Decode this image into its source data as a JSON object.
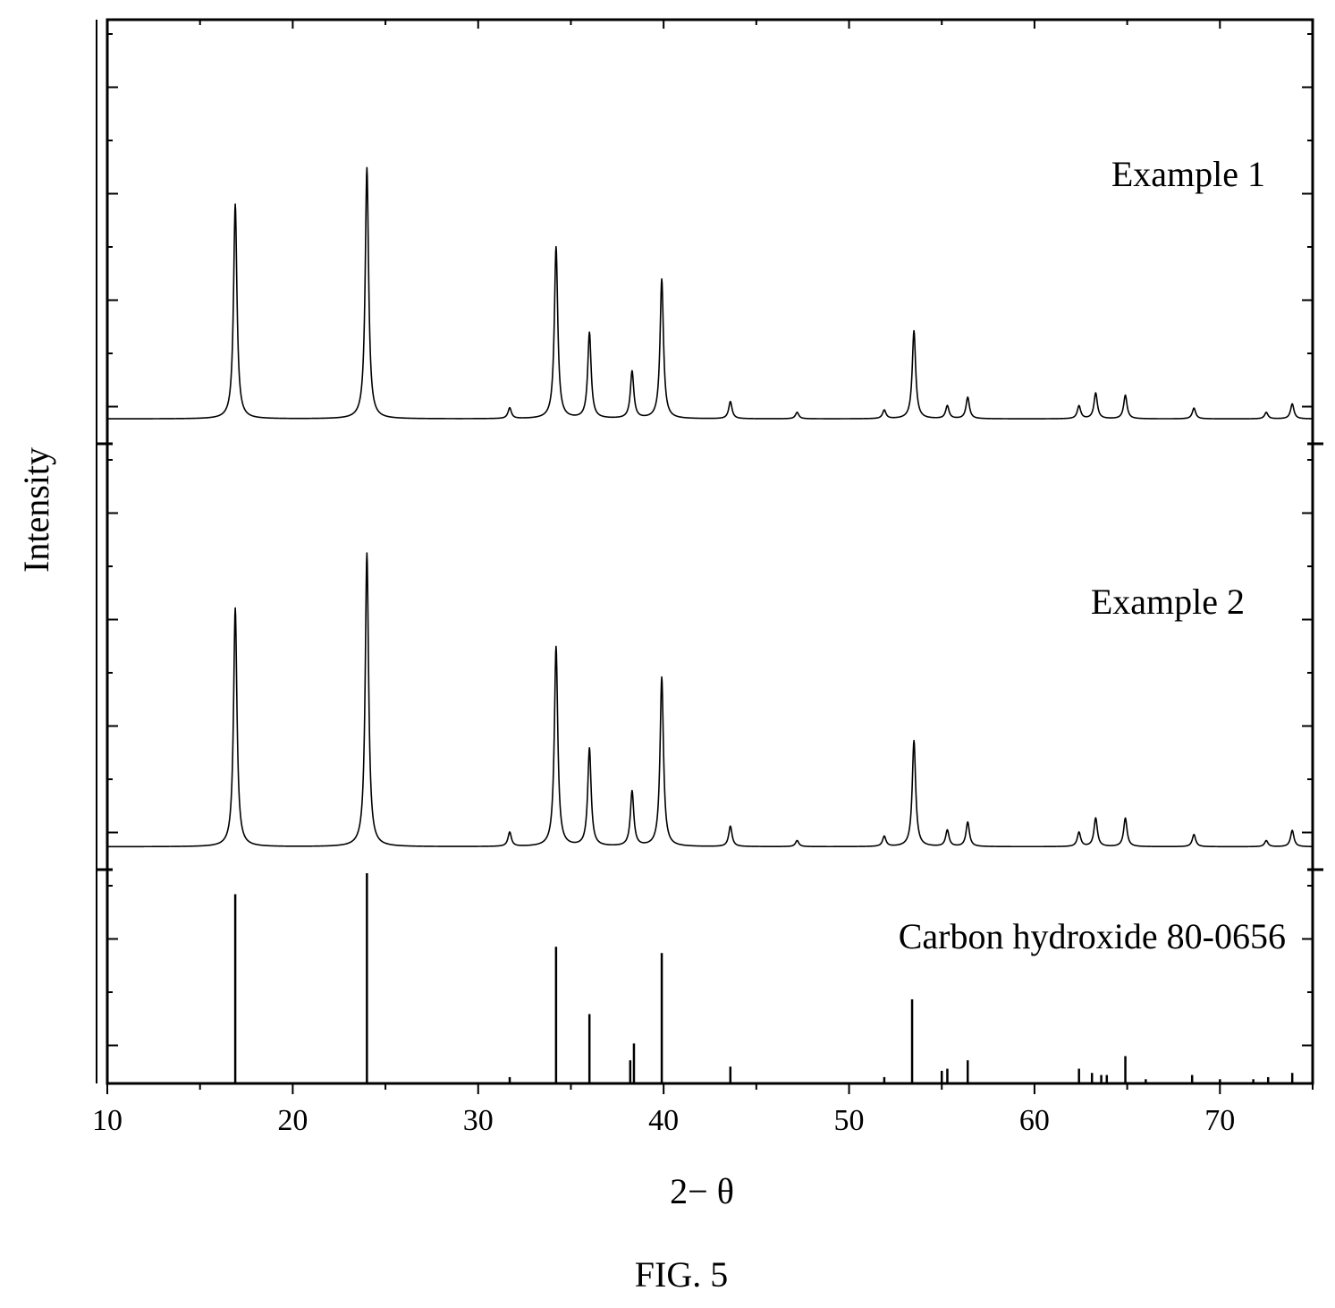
{
  "figure": {
    "caption": "FIG. 5"
  },
  "chart_data": {
    "type": "line",
    "xlabel": "2− θ",
    "ylabel": "Intensity",
    "xlim": [
      10,
      75
    ],
    "x_ticks": [
      10,
      20,
      30,
      40,
      50,
      60,
      70
    ],
    "y_tick_labels_shown": false,
    "panels": 3,
    "series": [
      {
        "name": "Example 1",
        "panel": 1,
        "style": "profile",
        "baseline": 0.02,
        "peaks": [
          {
            "x": 16.9,
            "y": 1.0
          },
          {
            "x": 24.0,
            "y": 1.17
          },
          {
            "x": 31.7,
            "y": 0.05
          },
          {
            "x": 34.2,
            "y": 0.8
          },
          {
            "x": 36.0,
            "y": 0.4
          },
          {
            "x": 38.3,
            "y": 0.22
          },
          {
            "x": 39.9,
            "y": 0.65
          },
          {
            "x": 43.6,
            "y": 0.08
          },
          {
            "x": 47.2,
            "y": 0.03
          },
          {
            "x": 51.9,
            "y": 0.04
          },
          {
            "x": 53.5,
            "y": 0.41
          },
          {
            "x": 55.3,
            "y": 0.06
          },
          {
            "x": 56.4,
            "y": 0.1
          },
          {
            "x": 62.4,
            "y": 0.06
          },
          {
            "x": 63.3,
            "y": 0.12
          },
          {
            "x": 64.9,
            "y": 0.11
          },
          {
            "x": 68.6,
            "y": 0.05
          },
          {
            "x": 72.5,
            "y": 0.03
          },
          {
            "x": 73.9,
            "y": 0.07
          }
        ]
      },
      {
        "name": "Example 2",
        "panel": 2,
        "style": "profile",
        "baseline": 0.02,
        "peaks": [
          {
            "x": 16.9,
            "y": 1.17
          },
          {
            "x": 24.0,
            "y": 1.44
          },
          {
            "x": 31.7,
            "y": 0.07
          },
          {
            "x": 34.2,
            "y": 0.98
          },
          {
            "x": 36.0,
            "y": 0.48
          },
          {
            "x": 38.3,
            "y": 0.27
          },
          {
            "x": 39.9,
            "y": 0.83
          },
          {
            "x": 43.6,
            "y": 0.1
          },
          {
            "x": 47.2,
            "y": 0.03
          },
          {
            "x": 51.9,
            "y": 0.05
          },
          {
            "x": 53.5,
            "y": 0.52
          },
          {
            "x": 55.3,
            "y": 0.08
          },
          {
            "x": 56.4,
            "y": 0.12
          },
          {
            "x": 62.4,
            "y": 0.07
          },
          {
            "x": 63.3,
            "y": 0.14
          },
          {
            "x": 64.9,
            "y": 0.14
          },
          {
            "x": 68.6,
            "y": 0.06
          },
          {
            "x": 72.5,
            "y": 0.03
          },
          {
            "x": 73.9,
            "y": 0.08
          }
        ]
      },
      {
        "name": "Carbon hydroxide 80-0656",
        "panel": 3,
        "style": "sticks",
        "peaks": [
          {
            "x": 16.9,
            "y": 90
          },
          {
            "x": 24.0,
            "y": 100
          },
          {
            "x": 31.7,
            "y": 3
          },
          {
            "x": 34.2,
            "y": 65
          },
          {
            "x": 36.0,
            "y": 33
          },
          {
            "x": 38.2,
            "y": 11
          },
          {
            "x": 38.4,
            "y": 19
          },
          {
            "x": 39.9,
            "y": 62
          },
          {
            "x": 43.6,
            "y": 8
          },
          {
            "x": 51.9,
            "y": 3
          },
          {
            "x": 53.4,
            "y": 40
          },
          {
            "x": 55.0,
            "y": 6
          },
          {
            "x": 55.3,
            "y": 7
          },
          {
            "x": 56.4,
            "y": 11
          },
          {
            "x": 62.4,
            "y": 7
          },
          {
            "x": 63.1,
            "y": 5
          },
          {
            "x": 63.6,
            "y": 4
          },
          {
            "x": 63.9,
            "y": 4
          },
          {
            "x": 64.9,
            "y": 13
          },
          {
            "x": 66.0,
            "y": 2
          },
          {
            "x": 68.5,
            "y": 4
          },
          {
            "x": 70.0,
            "y": 2
          },
          {
            "x": 71.8,
            "y": 2
          },
          {
            "x": 72.6,
            "y": 3
          },
          {
            "x": 73.9,
            "y": 5
          }
        ]
      }
    ]
  }
}
